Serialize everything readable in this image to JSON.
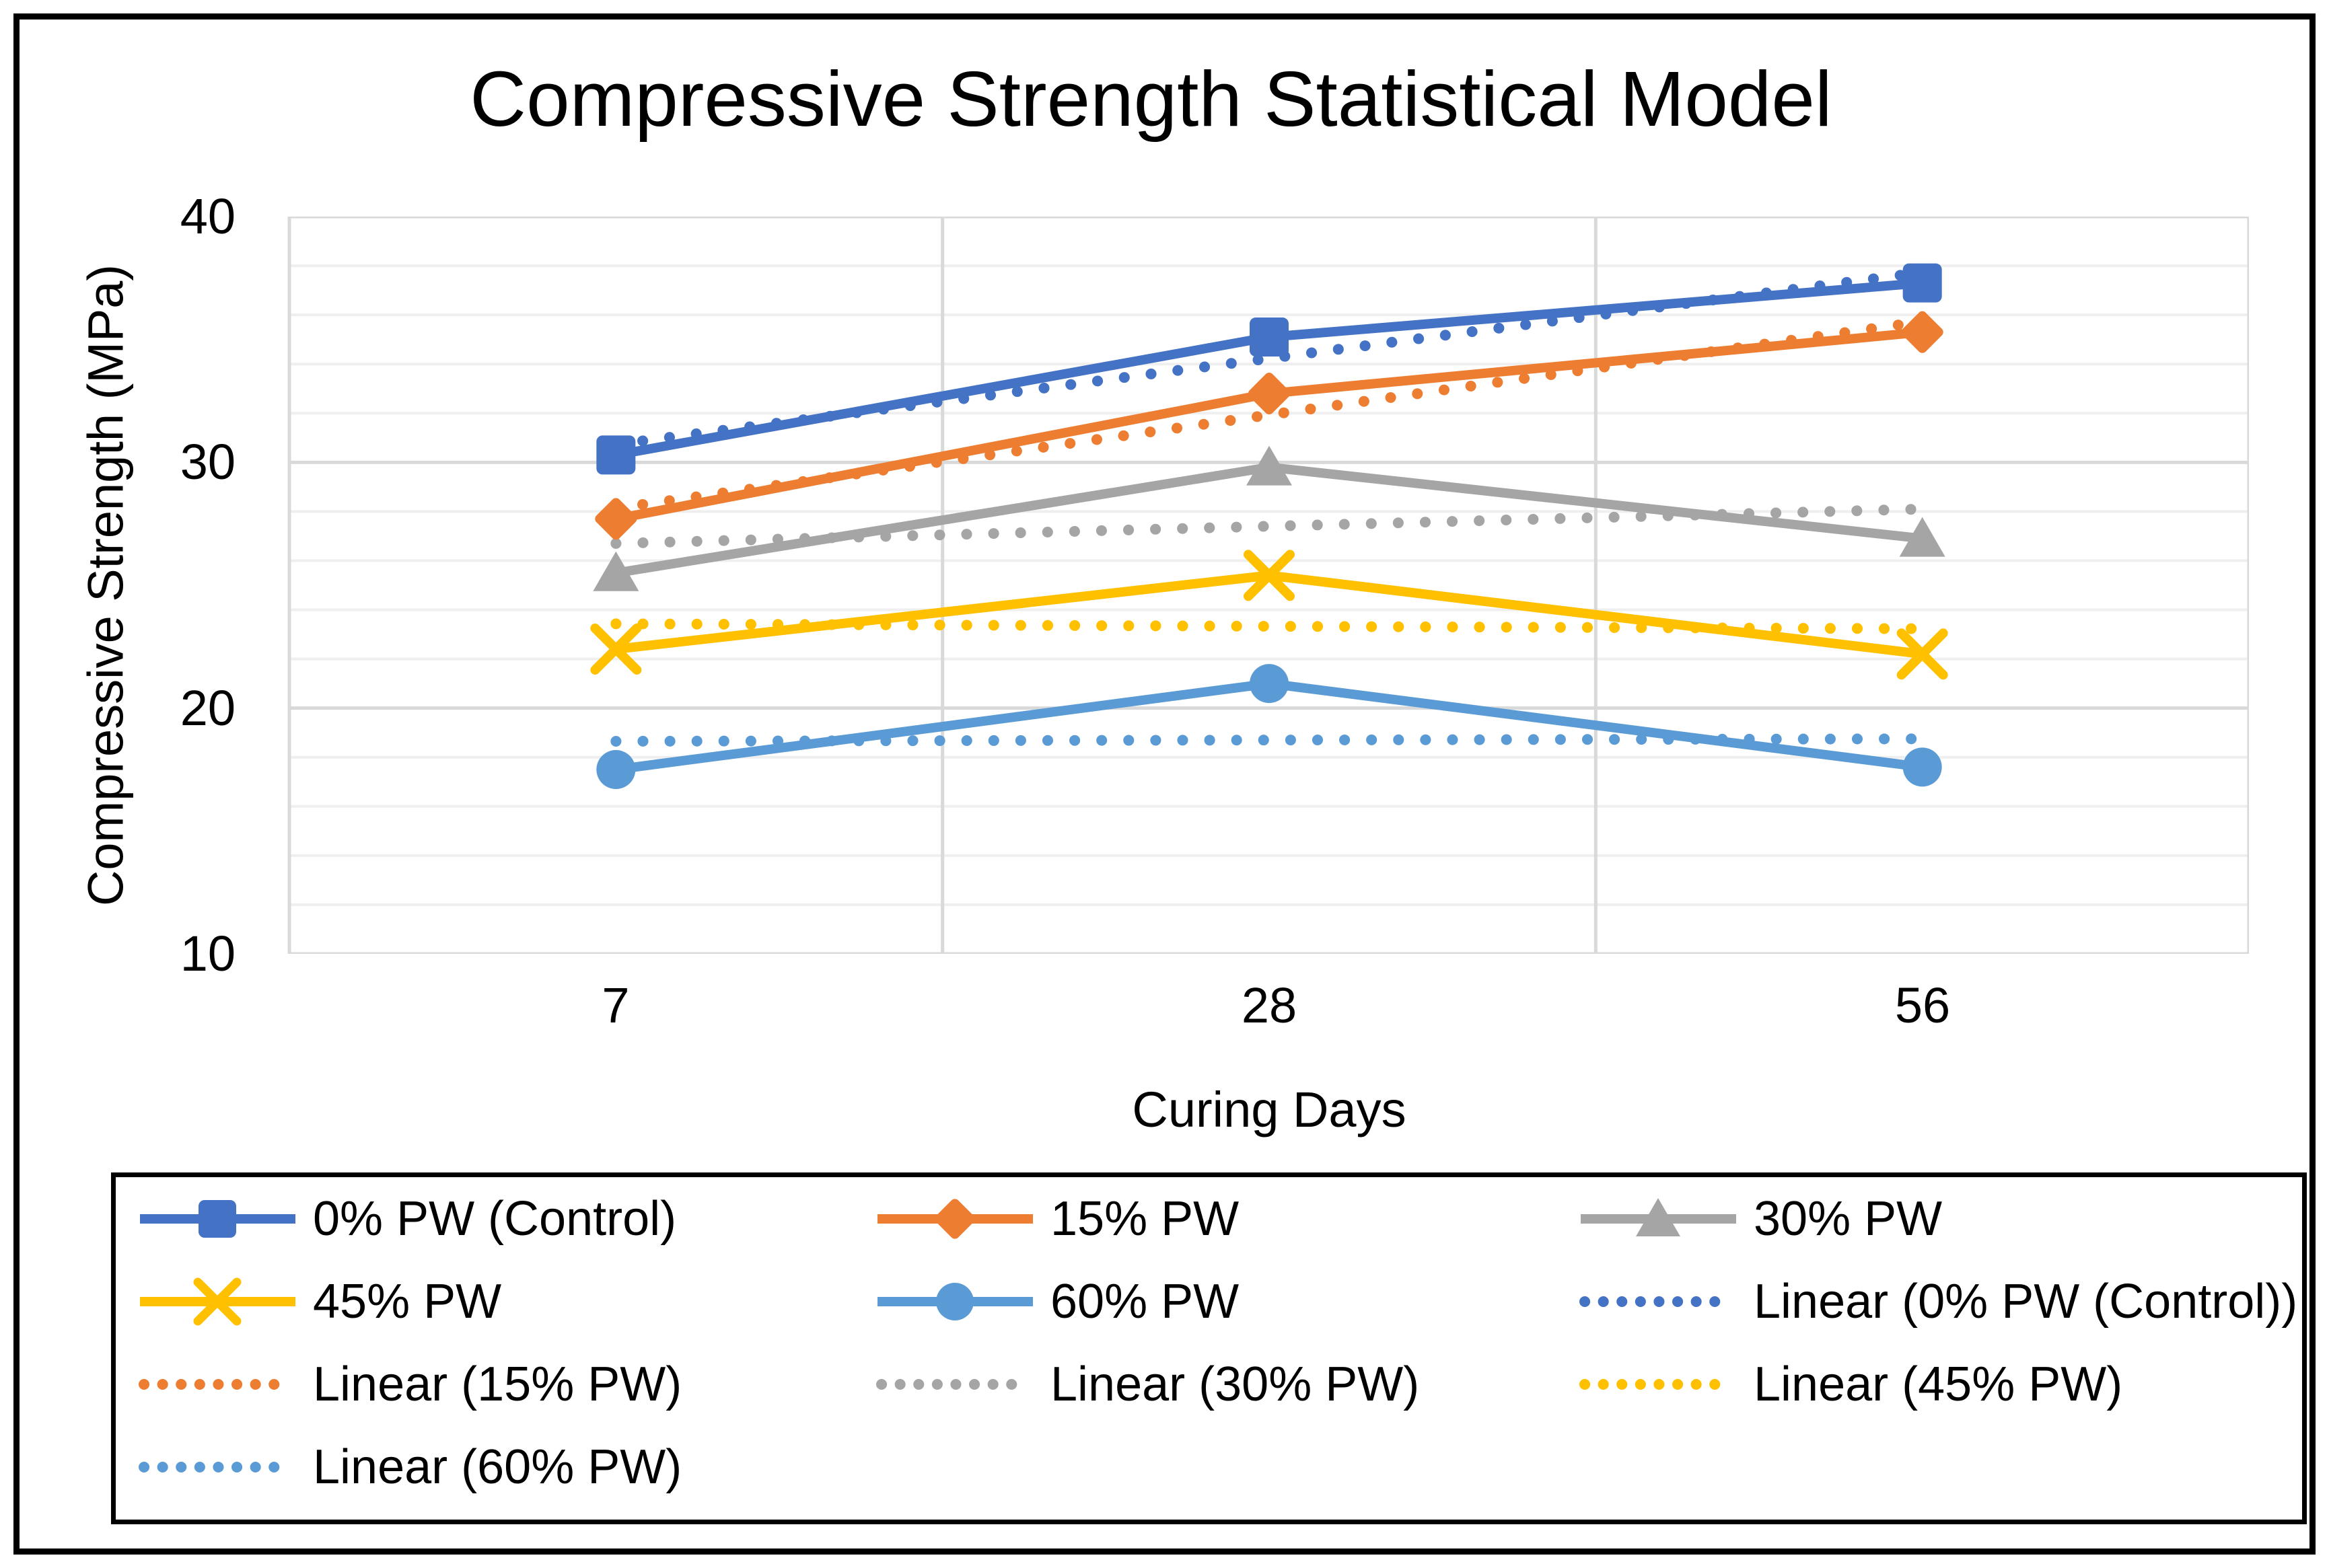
{
  "figure": {
    "title": "Compressive Strength Statistical Model"
  },
  "axes": {
    "y": {
      "title": "Compressive Strength (MPa)",
      "ticks": [
        "40",
        "30",
        "20",
        "10"
      ]
    },
    "x": {
      "title": "Curing Days",
      "ticks": [
        "7",
        "28",
        "56"
      ]
    }
  },
  "colors": {
    "blue": "#4472C4",
    "orange": "#ED7D31",
    "gray": "#A5A5A5",
    "gold": "#FFC000",
    "lightblue": "#5B9BD5",
    "grid_minor": "#EFEFEF",
    "grid_major": "#D9D9D9",
    "text": "#000000",
    "border": "#000000"
  },
  "chart_data": {
    "type": "line",
    "title": "Compressive Strength Statistical Model",
    "xlabel": "Curing Days",
    "ylabel": "Compressive Strength (MPa)",
    "categories": [
      7,
      28,
      56
    ],
    "ylim": [
      10,
      40
    ],
    "y_major_step": 10,
    "y_minor_step": 2,
    "grid": "on",
    "legend_position": "bottom",
    "series": [
      {
        "name": "0% PW (Control)",
        "color": "#4472C4",
        "marker": "square",
        "values": [
          30.3,
          35.1,
          37.3
        ]
      },
      {
        "name": "15% PW",
        "color": "#ED7D31",
        "marker": "diamond",
        "values": [
          27.7,
          32.8,
          35.3
        ]
      },
      {
        "name": "30% PW",
        "color": "#A5A5A5",
        "marker": "triangle",
        "values": [
          25.5,
          29.8,
          26.9
        ]
      },
      {
        "name": "45% PW",
        "color": "#FFC000",
        "marker": "x",
        "values": [
          22.4,
          25.4,
          22.2
        ]
      },
      {
        "name": "60% PW",
        "color": "#5B9BD5",
        "marker": "circle",
        "values": [
          17.5,
          21.0,
          17.6
        ]
      }
    ],
    "trendlines": [
      {
        "name": "Linear (0% PW (Control))",
        "color": "#4472C4",
        "values": [
          30.73,
          34.23,
          37.73
        ]
      },
      {
        "name": "Linear (15% PW)",
        "color": "#ED7D31",
        "values": [
          28.13,
          31.93,
          35.73
        ]
      },
      {
        "name": "Linear (30% PW)",
        "color": "#A5A5A5",
        "values": [
          26.7,
          27.4,
          28.1
        ]
      },
      {
        "name": "Linear (45% PW)",
        "color": "#FFC000",
        "values": [
          23.43,
          23.33,
          23.23
        ]
      },
      {
        "name": "Linear (60% PW)",
        "color": "#5B9BD5",
        "values": [
          18.65,
          18.7,
          18.75
        ]
      }
    ]
  },
  "legend": {
    "items": [
      {
        "label": "0% PW (Control)",
        "color": "#4472C4",
        "marker": "square",
        "line": "solid",
        "row": 0,
        "col": 0
      },
      {
        "label": "15% PW",
        "color": "#ED7D31",
        "marker": "diamond",
        "line": "solid",
        "row": 0,
        "col": 1
      },
      {
        "label": "30% PW",
        "color": "#A5A5A5",
        "marker": "triangle",
        "line": "solid",
        "row": 0,
        "col": 2
      },
      {
        "label": "45% PW",
        "color": "#FFC000",
        "marker": "x",
        "line": "solid",
        "row": 1,
        "col": 0
      },
      {
        "label": "60% PW",
        "color": "#5B9BD5",
        "marker": "circle",
        "line": "solid",
        "row": 1,
        "col": 1
      },
      {
        "label": "Linear (0% PW (Control))",
        "color": "#4472C4",
        "marker": "none",
        "line": "dotted",
        "row": 1,
        "col": 2
      },
      {
        "label": "Linear (15% PW)",
        "color": "#ED7D31",
        "marker": "none",
        "line": "dotted",
        "row": 2,
        "col": 0
      },
      {
        "label": "Linear (30% PW)",
        "color": "#A5A5A5",
        "marker": "none",
        "line": "dotted",
        "row": 2,
        "col": 1
      },
      {
        "label": "Linear (45% PW)",
        "color": "#FFC000",
        "marker": "none",
        "line": "dotted",
        "row": 2,
        "col": 2
      },
      {
        "label": "Linear (60% PW)",
        "color": "#5B9BD5",
        "marker": "none",
        "line": "dotted",
        "row": 3,
        "col": 0
      }
    ]
  }
}
